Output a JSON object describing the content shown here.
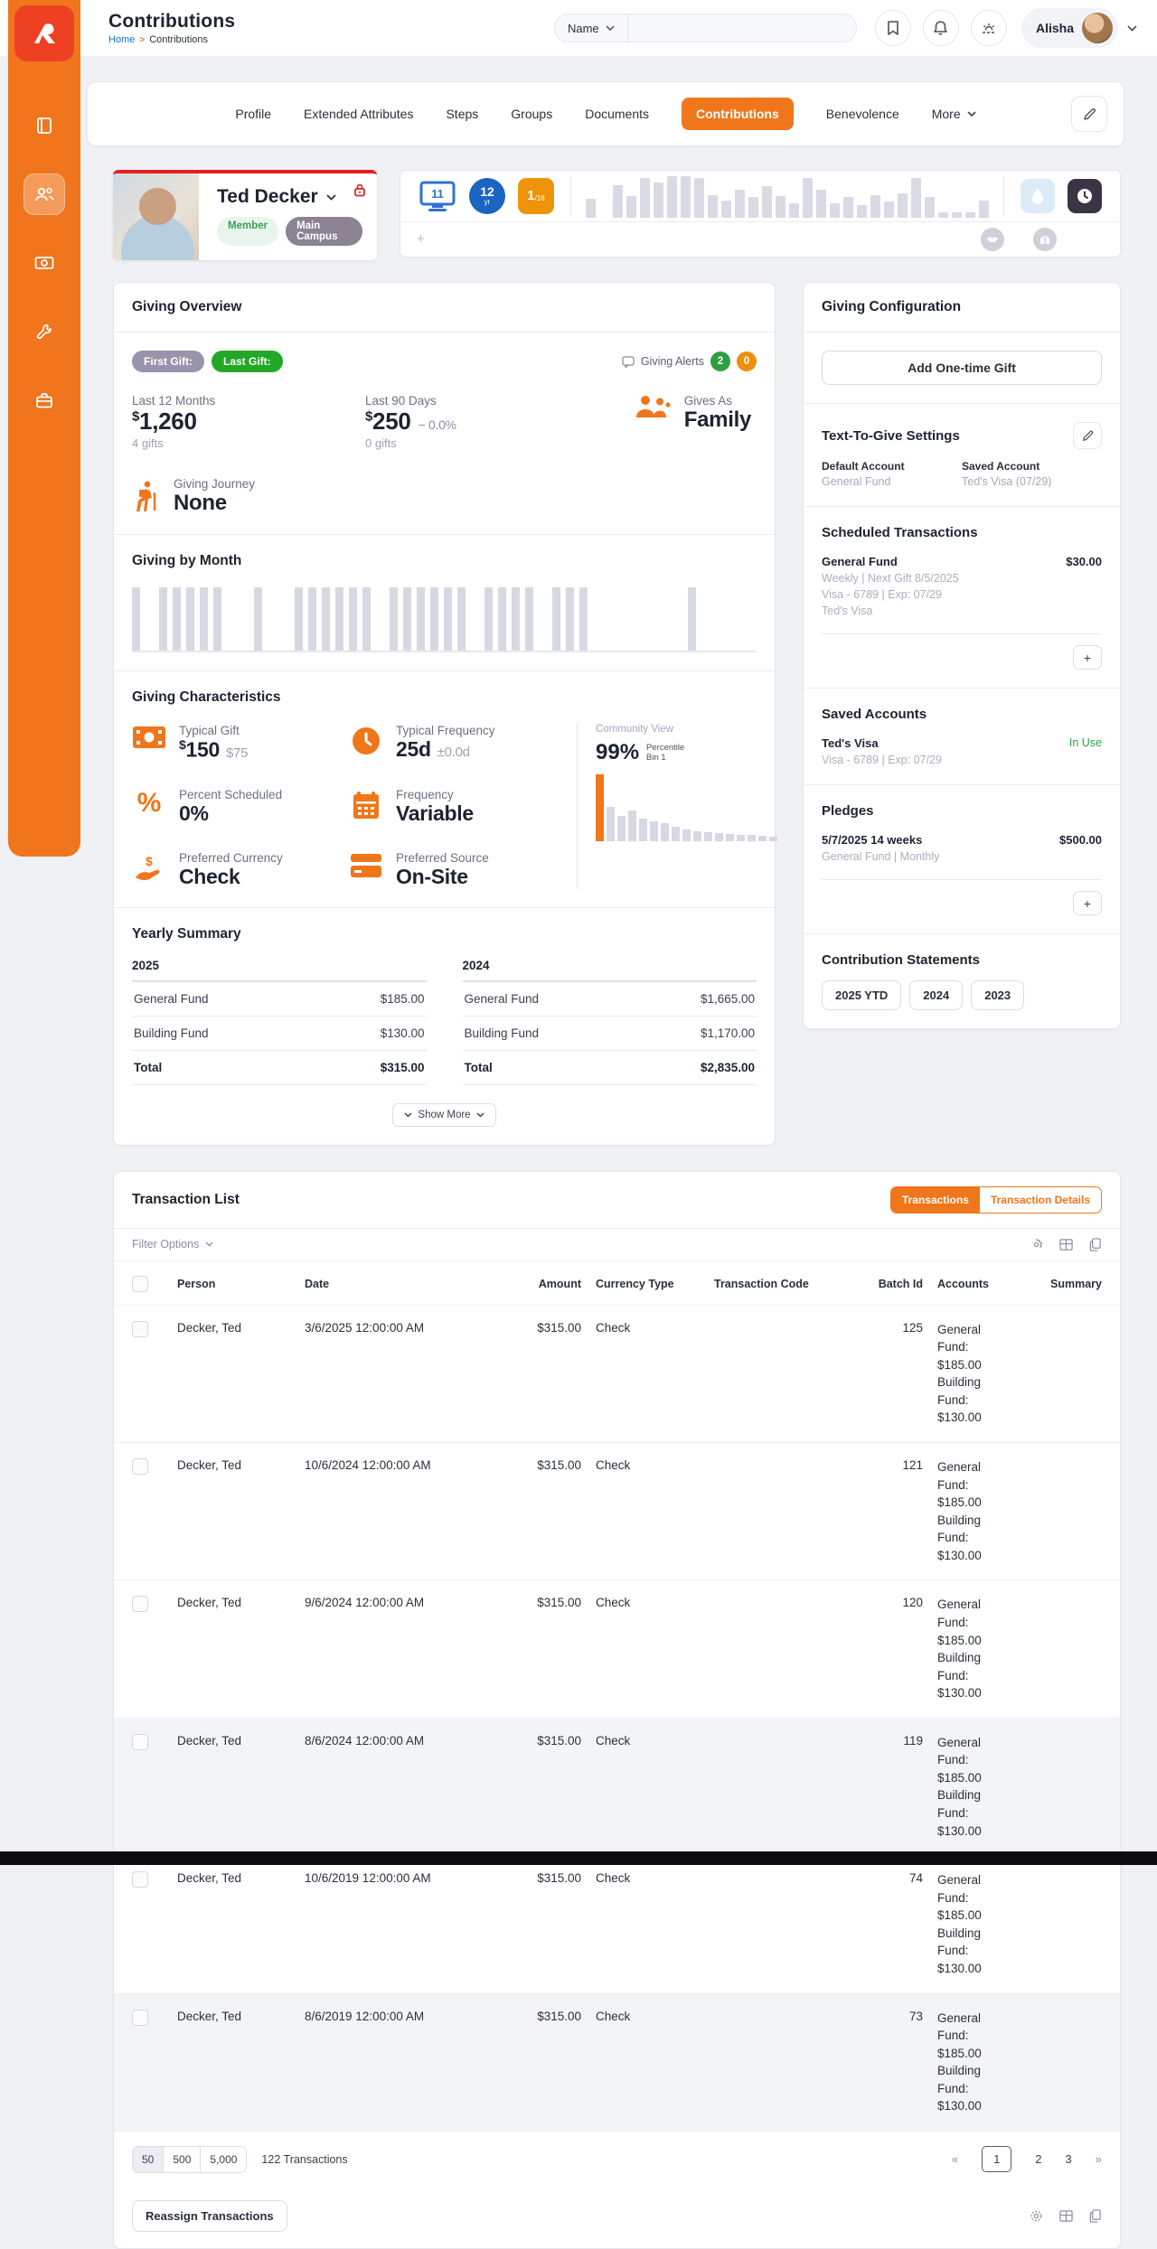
{
  "colors": {
    "accent": "#f0761b",
    "logo_red": "#ee4123",
    "blue_badge": "#1b64c4",
    "amber_badge": "#ef940a",
    "green": "#23a826",
    "alert_green": "#2f9e44",
    "alert_orange": "#ef8f0c",
    "red_lock": "#e02020",
    "muted": "#a8a4ba"
  },
  "header": {
    "title": "Contributions",
    "breadcrumb": {
      "home": "Home",
      "separator": ">",
      "current": "Contributions"
    },
    "search": {
      "filter_label": "Name",
      "value": ""
    },
    "user": {
      "name": "Alisha"
    }
  },
  "tabs": {
    "items": [
      "Profile",
      "Extended Attributes",
      "Steps",
      "Groups",
      "Documents",
      "Contributions",
      "Benevolence",
      "More"
    ],
    "active": "Contributions",
    "dropdown_tabs": [
      "More"
    ]
  },
  "person": {
    "name": "Ted Decker",
    "badges": {
      "status": "Member",
      "campus": "Main Campus"
    },
    "badge_bar": {
      "monitor_count": "11",
      "era_value": "12",
      "era_unit": "yr",
      "attendance_numerator": "1",
      "attendance_denominator": "/16",
      "add_label": "+"
    }
  },
  "giving_overview": {
    "title": "Giving Overview",
    "first_gift_label": "First Gift:",
    "last_gift_label": "Last Gift:",
    "alerts_label": "Giving Alerts",
    "alert_counts": {
      "green": "2",
      "orange": "0"
    },
    "last_12_months": {
      "label": "Last 12 Months",
      "currency": "$",
      "value": "1,260",
      "sub": "4 gifts"
    },
    "last_90_days": {
      "label": "Last 90 Days",
      "currency": "$",
      "value": "250",
      "delta": "− 0.0%",
      "sub": "0 gifts"
    },
    "gives_as": {
      "label": "Gives As",
      "value": "Family"
    },
    "giving_journey": {
      "label": "Giving Journey",
      "value": "None"
    }
  },
  "giving_by_month": {
    "title": "Giving by Month"
  },
  "giving_characteristics": {
    "title": "Giving Characteristics",
    "typical_gift": {
      "label": "Typical Gift",
      "currency": "$",
      "value": "150",
      "secondary": "$75"
    },
    "typical_frequency": {
      "label": "Typical Frequency",
      "value": "25d",
      "secondary": "±0.0d"
    },
    "percent_scheduled": {
      "label": "Percent Scheduled",
      "value": "0%"
    },
    "frequency": {
      "label": "Frequency",
      "value": "Variable"
    },
    "preferred_currency": {
      "label": "Preferred Currency",
      "value": "Check"
    },
    "preferred_source": {
      "label": "Preferred Source",
      "value": "On-Site"
    },
    "community_view": {
      "label": "Community View",
      "percent": "99%",
      "bin_line1": "Percentile",
      "bin_line2": "Bin 1"
    }
  },
  "yearly_summary": {
    "title": "Yearly Summary",
    "total_label": "Total",
    "show_more_label": "Show More",
    "years": [
      {
        "year": "2025",
        "rows": [
          {
            "fund": "General Fund",
            "amount": "$185.00"
          },
          {
            "fund": "Building Fund",
            "amount": "$130.00"
          }
        ],
        "total": "$315.00"
      },
      {
        "year": "2024",
        "rows": [
          {
            "fund": "General Fund",
            "amount": "$1,665.00"
          },
          {
            "fund": "Building Fund",
            "amount": "$1,170.00"
          }
        ],
        "total": "$2,835.00"
      }
    ]
  },
  "giving_configuration": {
    "title": "Giving Configuration",
    "add_gift_label": "Add One-time Gift",
    "text_to_give": {
      "title": "Text-To-Give Settings",
      "default_account_label": "Default Account",
      "default_account_value": "General Fund",
      "saved_account_label": "Saved Account",
      "saved_account_value": "Ted's Visa (07/29)"
    },
    "scheduled_transactions": {
      "title": "Scheduled Transactions",
      "item": {
        "name": "General Fund",
        "amount": "$30.00",
        "line1": "Weekly | Next Gift 8/5/2025",
        "line2": "Visa - 6789 | Exp: 07/29",
        "line3": "Ted's Visa"
      },
      "add_label": "+"
    },
    "saved_accounts": {
      "title": "Saved Accounts",
      "item": {
        "name": "Ted's Visa",
        "line1": "Visa - 6789 | Exp: 07/29",
        "status": "In Use"
      }
    },
    "pledges": {
      "title": "Pledges",
      "item": {
        "name": "5/7/2025 14 weeks",
        "amount": "$500.00",
        "line1": "General Fund | Monthly"
      },
      "add_label": "+"
    },
    "contribution_statements": {
      "title": "Contribution Statements",
      "buttons": [
        "2025 YTD",
        "2024",
        "2023"
      ]
    }
  },
  "transaction_list": {
    "title": "Transaction List",
    "toggles": [
      "Transactions",
      "Transaction Details"
    ],
    "active_toggle": "Transactions",
    "filter_label": "Filter Options",
    "columns": [
      {
        "label": "Person",
        "align": "left"
      },
      {
        "label": "Date",
        "align": "left"
      },
      {
        "label": "Amount",
        "align": "right"
      },
      {
        "label": "Currency Type",
        "align": "left"
      },
      {
        "label": "Transaction Code",
        "align": "left"
      },
      {
        "label": "Batch Id",
        "align": "right"
      },
      {
        "label": "Accounts",
        "align": "left"
      },
      {
        "label": "Summary",
        "align": "right"
      }
    ],
    "rows": [
      {
        "person": "Decker, Ted",
        "date": "3/6/2025 12:00:00 AM",
        "amount": "$315.00",
        "currency": "Check",
        "code": "",
        "batch": "125",
        "accounts": [
          "General Fund: $185.00",
          "Building Fund: $130.00"
        ],
        "summary": ""
      },
      {
        "person": "Decker, Ted",
        "date": "10/6/2024 12:00:00 AM",
        "amount": "$315.00",
        "currency": "Check",
        "code": "",
        "batch": "121",
        "accounts": [
          "General Fund: $185.00",
          "Building Fund: $130.00"
        ],
        "summary": ""
      },
      {
        "person": "Decker, Ted",
        "date": "9/6/2024 12:00:00 AM",
        "amount": "$315.00",
        "currency": "Check",
        "code": "",
        "batch": "120",
        "accounts": [
          "General Fund: $185.00",
          "Building Fund: $130.00"
        ],
        "summary": ""
      },
      {
        "person": "Decker, Ted",
        "date": "8/6/2024 12:00:00 AM",
        "amount": "$315.00",
        "currency": "Check",
        "code": "",
        "batch": "119",
        "accounts": [
          "General Fund: $185.00",
          "Building Fund: $130.00"
        ],
        "summary": ""
      },
      {
        "person": "Decker, Ted",
        "date": "10/6/2019 12:00:00 AM",
        "amount": "$315.00",
        "currency": "Check",
        "code": "",
        "batch": "74",
        "accounts": [
          "General Fund: $185.00",
          "Building Fund: $130.00"
        ],
        "summary": ""
      },
      {
        "person": "Decker, Ted",
        "date": "8/6/2019 12:00:00 AM",
        "amount": "$315.00",
        "currency": "Check",
        "code": "",
        "batch": "73",
        "accounts": [
          "General Fund: $185.00",
          "Building Fund: $130.00"
        ],
        "summary": ""
      }
    ],
    "footer": {
      "page_sizes": [
        "50",
        "500",
        "5,000"
      ],
      "active_page_size": "50",
      "count_text": "122 Transactions",
      "prev_label": "«",
      "next_label": "»",
      "pages": [
        "1",
        "2",
        "3"
      ],
      "current_page": "1",
      "reassign_label": "Reassign Transactions"
    }
  },
  "chart_data": [
    {
      "type": "bar",
      "title": "Attendance badge sparkline (weeks, unlabeled)",
      "x": [],
      "xlabel": "",
      "ylabel": "",
      "grid": false,
      "legend": "none",
      "values_relative": [
        0.45,
        0,
        0.78,
        0.52,
        0.95,
        0.85,
        1,
        1,
        0.95,
        0.55,
        0.42,
        0.68,
        0.5,
        0.75,
        0.52,
        0.35,
        0.95,
        0.68,
        0.35,
        0.5,
        0.3,
        0.55,
        0.4,
        0.58,
        0.95,
        0.5,
        0.12,
        0.12,
        0.14,
        0.42
      ]
    },
    {
      "type": "bar",
      "title": "Giving by Month (months unlabeled, uniform-height bars where a gift occurred; approximate)",
      "x": [],
      "xlabel": "",
      "ylabel": "",
      "grid": false,
      "legend": "none",
      "values_relative": [
        1,
        0,
        1,
        1,
        1,
        1,
        1,
        0,
        0,
        1,
        0,
        0,
        1,
        1,
        1,
        1,
        1,
        1,
        0,
        1,
        1,
        1,
        1,
        1,
        1,
        0,
        1,
        1,
        1,
        1,
        0,
        1,
        1,
        1,
        0,
        0,
        0,
        0,
        0,
        0,
        0,
        1,
        0,
        0
      ]
    },
    {
      "type": "bar",
      "title": "Community View percentile histogram (Bin 1 highlighted, 99%)",
      "x": [],
      "xlabel": "",
      "ylabel": "",
      "grid": false,
      "legend": "none",
      "highlight_index": 0,
      "values_relative": [
        1,
        0.52,
        0.38,
        0.46,
        0.34,
        0.3,
        0.27,
        0.22,
        0.18,
        0.15,
        0.13,
        0.12,
        0.11,
        0.1,
        0.09,
        0.08,
        0.07
      ]
    }
  ]
}
